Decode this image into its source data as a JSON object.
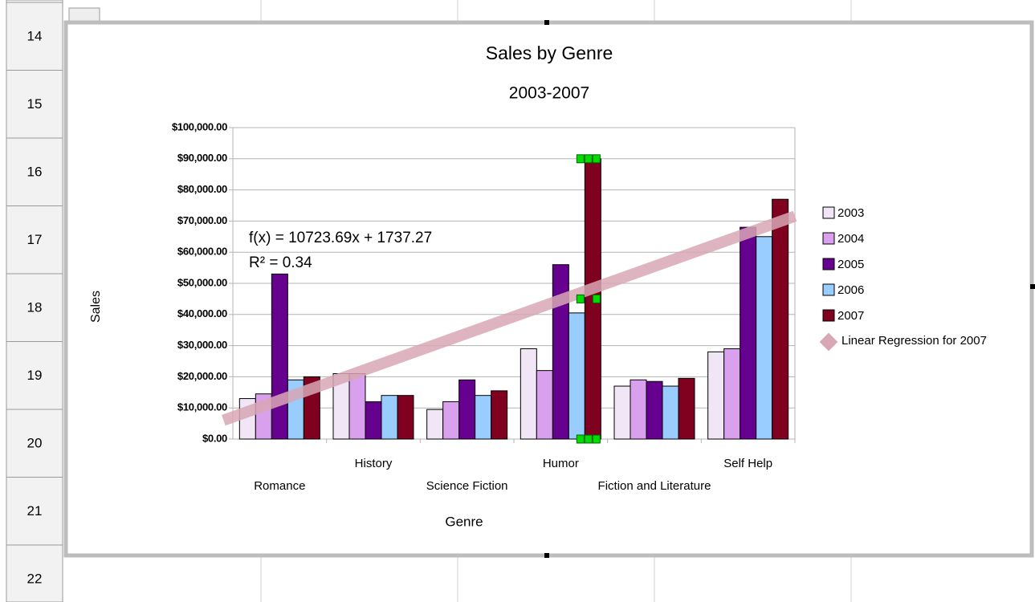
{
  "rows": [
    "14",
    "15",
    "16",
    "17",
    "18",
    "19",
    "20",
    "21",
    "22"
  ],
  "chart_data": {
    "type": "bar",
    "title": "Sales by Genre",
    "subtitle": "2003-2007",
    "x_label": "Genre",
    "y_label": "Sales",
    "categories": [
      "Romance",
      "History",
      "Science Fiction",
      "Humor",
      "Fiction and Literature",
      "Self Help"
    ],
    "series": [
      {
        "name": "2003",
        "color": "#f1e6f5",
        "values": [
          13000,
          21000,
          9500,
          29000,
          17000,
          28000
        ]
      },
      {
        "name": "2004",
        "color": "#d9a0ee",
        "values": [
          14500,
          21000,
          12000,
          22000,
          19000,
          29000
        ]
      },
      {
        "name": "2005",
        "color": "#66008f",
        "values": [
          53000,
          12000,
          19000,
          56000,
          18500,
          68000
        ]
      },
      {
        "name": "2006",
        "color": "#99ccff",
        "values": [
          19000,
          14000,
          14000,
          40500,
          17000,
          65000
        ]
      },
      {
        "name": "2007",
        "color": "#800020",
        "values": [
          20000,
          14000,
          15500,
          90000,
          19500,
          77000
        ]
      }
    ],
    "trendline": {
      "name": "Linear Regression for 2007",
      "series": 4,
      "color": "#d8a7b5",
      "equation": "f(x) = 10723.69x + 1737.27",
      "r_squared": "R² = 0.34"
    },
    "ylim": [
      0,
      100000
    ],
    "yticks": [
      {
        "value": 0,
        "label": "$0.00"
      },
      {
        "value": 10000,
        "label": "$10,000.00"
      },
      {
        "value": 20000,
        "label": "$20,000.00"
      },
      {
        "value": 30000,
        "label": "$30,000.00"
      },
      {
        "value": 40000,
        "label": "$40,000.00"
      },
      {
        "value": 50000,
        "label": "$50,000.00"
      },
      {
        "value": 60000,
        "label": "$60,000.00"
      },
      {
        "value": 70000,
        "label": "$70,000.00"
      },
      {
        "value": 80000,
        "label": "$80,000.00"
      },
      {
        "value": 90000,
        "label": "$90,000.00"
      },
      {
        "value": 100000,
        "label": "$100,000.00"
      }
    ],
    "grid": true,
    "legend": "right"
  }
}
